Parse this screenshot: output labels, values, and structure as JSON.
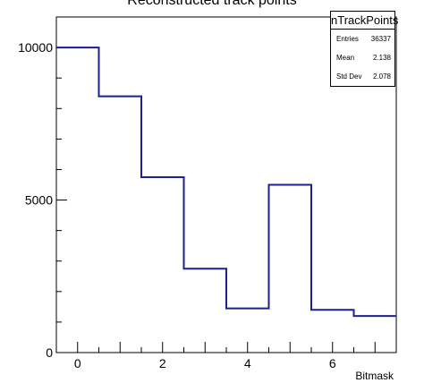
{
  "chart_data": {
    "type": "bar",
    "style": "step-histogram",
    "title": "Reconstructed track points",
    "xlabel": "Bitmask",
    "ylabel": "",
    "x_edges": [
      -0.5,
      0.5,
      1.5,
      2.5,
      3.5,
      4.5,
      5.5,
      6.5,
      7.5
    ],
    "categories": [
      "0",
      "1",
      "2",
      "3",
      "4",
      "5",
      "6",
      "7"
    ],
    "values": [
      10000,
      8400,
      5750,
      2750,
      1450,
      5500,
      1400,
      1200
    ],
    "xlim": [
      -0.5,
      7.5
    ],
    "ylim": [
      0,
      11000
    ],
    "xticks": [
      0,
      2,
      4,
      6
    ],
    "yticks": [
      0,
      5000,
      10000
    ],
    "grid": false,
    "line_color": "#1f1f8f",
    "stats": {
      "name": "nTrackPoints",
      "rows": [
        {
          "label": "Entries",
          "value": "36337"
        },
        {
          "label": "Mean",
          "value": "2.138"
        },
        {
          "label": "Std Dev",
          "value": "2.078"
        }
      ]
    }
  }
}
